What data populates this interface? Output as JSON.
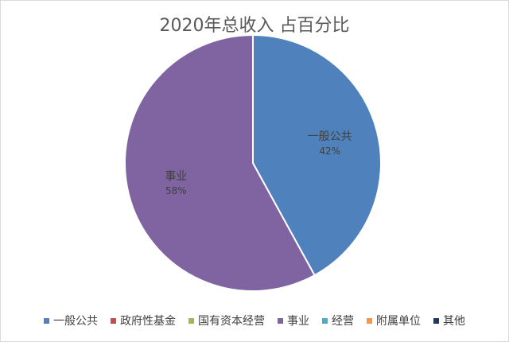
{
  "chart_data": {
    "type": "pie",
    "title": "2020年总收入 占百分比",
    "categories": [
      "一般公共",
      "政府性基金",
      "国有资本经营",
      "事业",
      "经营",
      "附属单位",
      "其他"
    ],
    "values": [
      42,
      0,
      0,
      58,
      0,
      0,
      0
    ],
    "value_labels": [
      "42%",
      "",
      "",
      "58%",
      "",
      "",
      ""
    ],
    "colors": [
      "#4f81bd",
      "#c0504d",
      "#9bbb59",
      "#8064a2",
      "#4bacc6",
      "#f79646",
      "#1f3864"
    ],
    "legend_position": "bottom"
  }
}
